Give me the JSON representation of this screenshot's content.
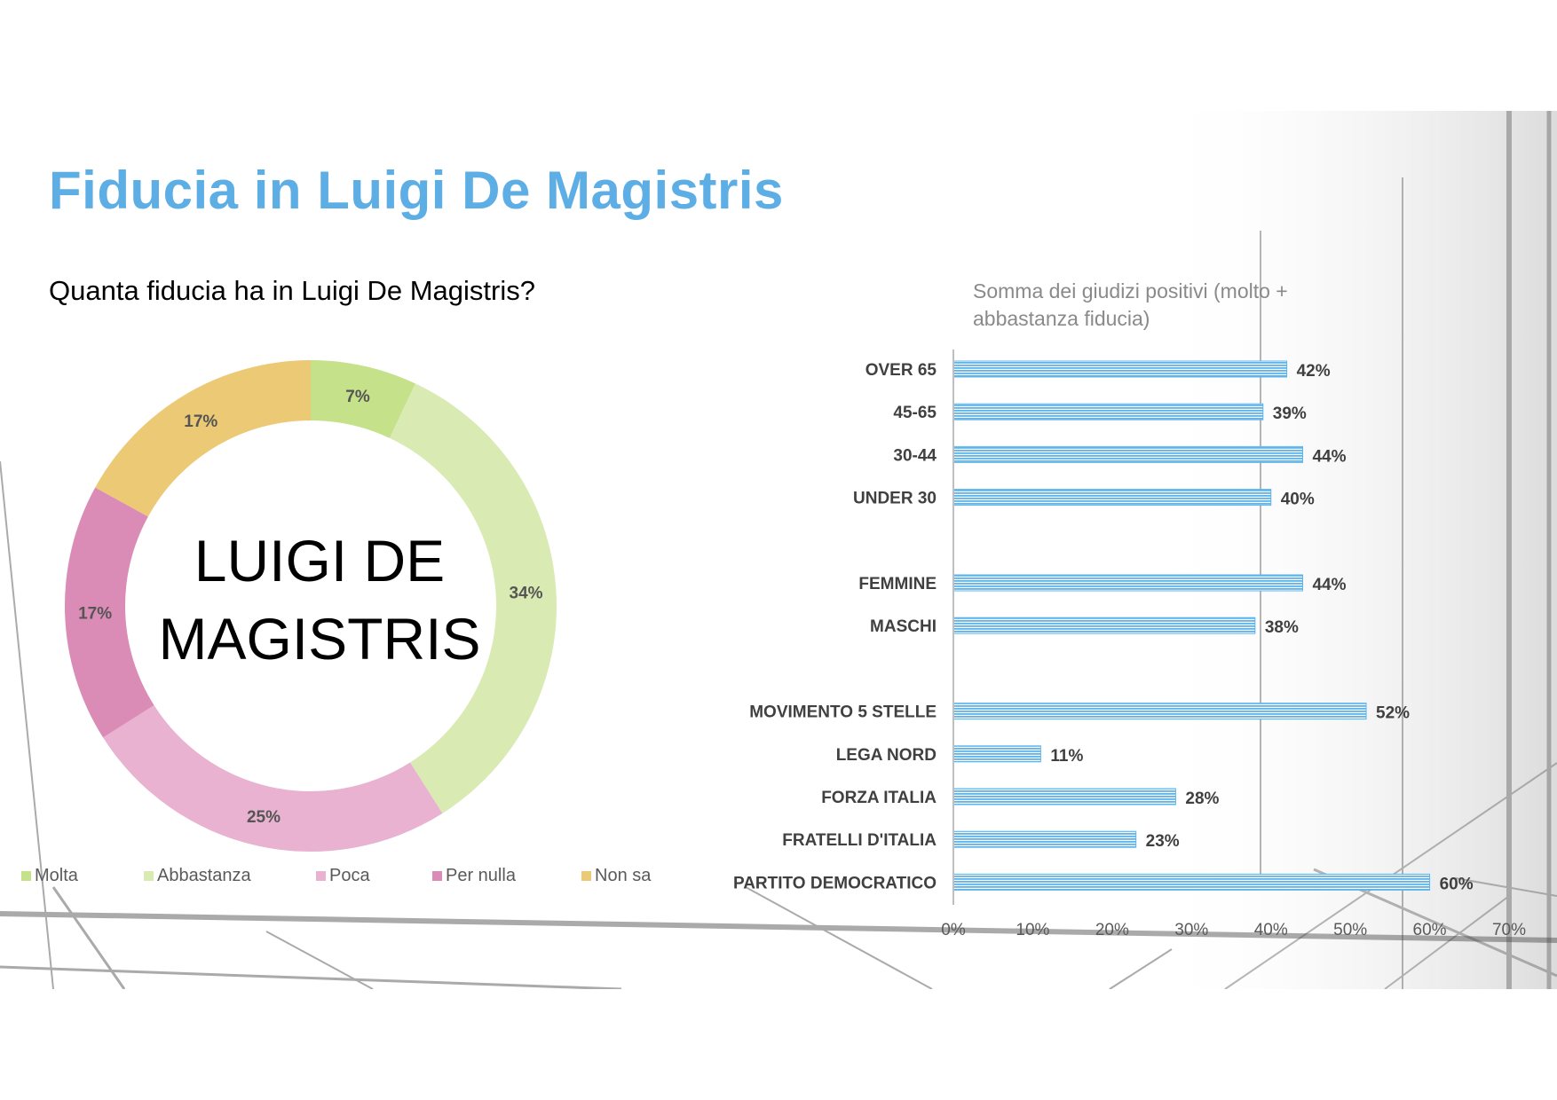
{
  "title": "Fiducia in Luigi De Magistris",
  "colors": {
    "title": "#5eaee6",
    "bar": "#5eb4ea",
    "slices": [
      "#c5e18a",
      "#d9eab3",
      "#e8b2d0",
      "#da8bb6",
      "#ecc975"
    ]
  },
  "chart_data": [
    {
      "type": "pie",
      "subtitle": "Quanta fiducia ha in Luigi De Magistris?",
      "center_text": [
        "LUIGI DE",
        "MAGISTRIS"
      ],
      "categories": [
        "Molta",
        "Abbastanza",
        "Poca",
        "Per nulla",
        "Non sa"
      ],
      "values": [
        7,
        34,
        25,
        17,
        17
      ],
      "value_labels": [
        "7%",
        "34%",
        "25%",
        "17%",
        "17%"
      ],
      "legend_position": "bottom"
    },
    {
      "type": "bar",
      "orientation": "horizontal",
      "title": "Somma dei giudizi positivi (molto + abbastanza fiducia)",
      "title_lines": [
        "Somma dei giudizi positivi (molto +",
        "abbastanza fiducia)"
      ],
      "categories": [
        "OVER 65",
        "45-65",
        "30-44",
        "UNDER 30",
        "",
        "FEMMINE",
        "MASCHI",
        "",
        "MOVIMENTO 5 STELLE",
        "LEGA NORD",
        "FORZA ITALIA",
        "FRATELLI D'ITALIA",
        "PARTITO DEMOCRATICO"
      ],
      "values": [
        42,
        39,
        44,
        40,
        null,
        44,
        38,
        null,
        52,
        11,
        28,
        23,
        60
      ],
      "value_labels": [
        "42%",
        "39%",
        "44%",
        "40%",
        "",
        "44%",
        "38%",
        "",
        "52%",
        "11%",
        "28%",
        "23%",
        "60%"
      ],
      "x_ticks": [
        "0%",
        "10%",
        "20%",
        "30%",
        "40%",
        "50%",
        "60%",
        "70%"
      ],
      "xlim": [
        0,
        70
      ]
    }
  ]
}
